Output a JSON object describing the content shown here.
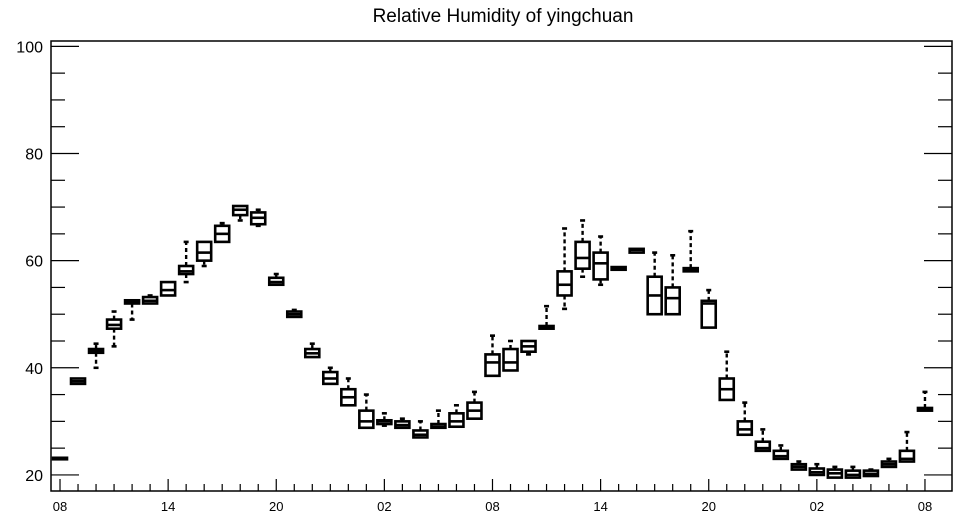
{
  "chart_data": {
    "type": "boxplot",
    "title": "Relative Humidity of yingchuan",
    "xlabel": "",
    "ylabel": "",
    "ylim": [
      17,
      101
    ],
    "yticks": [
      20,
      40,
      60,
      80,
      100
    ],
    "xlim": [
      -0.5,
      49.5
    ],
    "xtick_labels": [
      {
        "pos": 0,
        "label": "08"
      },
      {
        "pos": 6,
        "label": "14"
      },
      {
        "pos": 12,
        "label": "20"
      },
      {
        "pos": 18,
        "label": "02"
      },
      {
        "pos": 24,
        "label": "08"
      },
      {
        "pos": 30,
        "label": "14"
      },
      {
        "pos": 36,
        "label": "20"
      },
      {
        "pos": 42,
        "label": "02"
      },
      {
        "pos": 48,
        "label": "08"
      }
    ],
    "grid": false,
    "boxes": [
      {
        "x": 0,
        "min": 23.0,
        "q1": 23.0,
        "median": 23.1,
        "q3": 23.2,
        "max": 23.2
      },
      {
        "x": 1,
        "min": 37.0,
        "q1": 37.0,
        "median": 37.5,
        "q3": 38.0,
        "max": 38.0
      },
      {
        "x": 2,
        "min": 40.0,
        "q1": 42.8,
        "median": 43.2,
        "q3": 43.5,
        "max": 44.5
      },
      {
        "x": 3,
        "min": 44.0,
        "q1": 47.3,
        "median": 48.0,
        "q3": 49.0,
        "max": 50.5
      },
      {
        "x": 4,
        "min": 49.0,
        "q1": 52.0,
        "median": 52.3,
        "q3": 52.6,
        "max": 52.6
      },
      {
        "x": 5,
        "min": 52.0,
        "q1": 52.0,
        "median": 52.5,
        "q3": 53.2,
        "max": 53.5
      },
      {
        "x": 6,
        "min": 53.5,
        "q1": 53.5,
        "median": 54.5,
        "q3": 56.0,
        "max": 56.0
      },
      {
        "x": 7,
        "min": 56.0,
        "q1": 57.5,
        "median": 58.0,
        "q3": 59.0,
        "max": 63.5
      },
      {
        "x": 8,
        "min": 59.0,
        "q1": 60.0,
        "median": 61.5,
        "q3": 63.5,
        "max": 63.5
      },
      {
        "x": 9,
        "min": 63.5,
        "q1": 63.5,
        "median": 65.0,
        "q3": 66.5,
        "max": 67.0
      },
      {
        "x": 10,
        "min": 67.5,
        "q1": 68.5,
        "median": 69.5,
        "q3": 70.2,
        "max": 70.2
      },
      {
        "x": 11,
        "min": 66.5,
        "q1": 66.8,
        "median": 68.0,
        "q3": 69.0,
        "max": 69.5
      },
      {
        "x": 12,
        "min": 55.5,
        "q1": 55.5,
        "median": 56.0,
        "q3": 56.8,
        "max": 57.5
      },
      {
        "x": 13,
        "min": 49.5,
        "q1": 49.5,
        "median": 50.0,
        "q3": 50.5,
        "max": 50.8
      },
      {
        "x": 14,
        "min": 42.0,
        "q1": 42.0,
        "median": 42.7,
        "q3": 43.5,
        "max": 44.5
      },
      {
        "x": 15,
        "min": 37.0,
        "q1": 37.0,
        "median": 38.0,
        "q3": 39.2,
        "max": 40.0
      },
      {
        "x": 16,
        "min": 33.0,
        "q1": 33.0,
        "median": 34.5,
        "q3": 36.0,
        "max": 38.0
      },
      {
        "x": 17,
        "min": 28.8,
        "q1": 28.8,
        "median": 30.0,
        "q3": 32.0,
        "max": 35.0
      },
      {
        "x": 18,
        "min": 29.2,
        "q1": 29.5,
        "median": 30.0,
        "q3": 30.2,
        "max": 31.5
      },
      {
        "x": 19,
        "min": 28.8,
        "q1": 28.8,
        "median": 29.3,
        "q3": 30.0,
        "max": 30.5
      },
      {
        "x": 20,
        "min": 27.0,
        "q1": 27.0,
        "median": 27.5,
        "q3": 28.3,
        "max": 30.0
      },
      {
        "x": 21,
        "min": 28.8,
        "q1": 28.8,
        "median": 29.0,
        "q3": 29.5,
        "max": 32.0
      },
      {
        "x": 22,
        "min": 29.0,
        "q1": 29.0,
        "median": 30.0,
        "q3": 31.5,
        "max": 33.0
      },
      {
        "x": 23,
        "min": 30.5,
        "q1": 30.5,
        "median": 32.0,
        "q3": 33.5,
        "max": 35.5
      },
      {
        "x": 24,
        "min": 38.5,
        "q1": 38.5,
        "median": 41.0,
        "q3": 42.5,
        "max": 46.0
      },
      {
        "x": 25,
        "min": 39.5,
        "q1": 39.5,
        "median": 41.0,
        "q3": 43.5,
        "max": 45.0
      },
      {
        "x": 26,
        "min": 42.5,
        "q1": 43.0,
        "median": 44.0,
        "q3": 45.0,
        "max": 45.0
      },
      {
        "x": 27,
        "min": 47.3,
        "q1": 47.3,
        "median": 47.5,
        "q3": 47.8,
        "max": 51.5
      },
      {
        "x": 28,
        "min": 51.0,
        "q1": 53.5,
        "median": 55.5,
        "q3": 58.0,
        "max": 66.0
      },
      {
        "x": 29,
        "min": 57.0,
        "q1": 58.5,
        "median": 60.5,
        "q3": 63.5,
        "max": 67.5
      },
      {
        "x": 30,
        "min": 55.5,
        "q1": 56.5,
        "median": 59.5,
        "q3": 61.5,
        "max": 64.5
      },
      {
        "x": 31,
        "min": 58.3,
        "q1": 58.3,
        "median": 58.5,
        "q3": 58.8,
        "max": 58.8
      },
      {
        "x": 32,
        "min": 61.5,
        "q1": 61.5,
        "median": 62.0,
        "q3": 62.2,
        "max": 62.2
      },
      {
        "x": 33,
        "min": 50.0,
        "q1": 50.0,
        "median": 53.5,
        "q3": 57.0,
        "max": 61.5
      },
      {
        "x": 34,
        "min": 50.0,
        "q1": 50.0,
        "median": 53.0,
        "q3": 55.0,
        "max": 61.0
      },
      {
        "x": 35,
        "min": 58.0,
        "q1": 58.0,
        "median": 58.3,
        "q3": 58.6,
        "max": 65.5
      },
      {
        "x": 36,
        "min": 47.5,
        "q1": 47.5,
        "median": 52.0,
        "q3": 52.5,
        "max": 54.5
      },
      {
        "x": 37,
        "min": 34.0,
        "q1": 34.0,
        "median": 36.0,
        "q3": 38.0,
        "max": 43.0
      },
      {
        "x": 38,
        "min": 27.5,
        "q1": 27.5,
        "median": 28.5,
        "q3": 30.0,
        "max": 33.5
      },
      {
        "x": 39,
        "min": 24.5,
        "q1": 24.5,
        "median": 25.0,
        "q3": 26.2,
        "max": 28.5
      },
      {
        "x": 40,
        "min": 23.0,
        "q1": 23.0,
        "median": 23.5,
        "q3": 24.5,
        "max": 25.5
      },
      {
        "x": 41,
        "min": 21.0,
        "q1": 21.0,
        "median": 21.5,
        "q3": 22.0,
        "max": 22.5
      },
      {
        "x": 42,
        "min": 20.0,
        "q1": 20.0,
        "median": 20.5,
        "q3": 21.2,
        "max": 22.0
      },
      {
        "x": 43,
        "min": 19.5,
        "q1": 19.5,
        "median": 20.3,
        "q3": 21.0,
        "max": 21.5
      },
      {
        "x": 44,
        "min": 19.5,
        "q1": 19.5,
        "median": 20.0,
        "q3": 20.8,
        "max": 21.5
      },
      {
        "x": 45,
        "min": 19.8,
        "q1": 19.8,
        "median": 20.2,
        "q3": 20.8,
        "max": 21.0
      },
      {
        "x": 46,
        "min": 21.5,
        "q1": 21.5,
        "median": 22.0,
        "q3": 22.5,
        "max": 23.0
      },
      {
        "x": 47,
        "min": 22.5,
        "q1": 22.5,
        "median": 23.0,
        "q3": 24.5,
        "max": 28.0
      },
      {
        "x": 48,
        "min": 32.0,
        "q1": 32.0,
        "median": 32.2,
        "q3": 32.5,
        "max": 35.5
      }
    ]
  }
}
